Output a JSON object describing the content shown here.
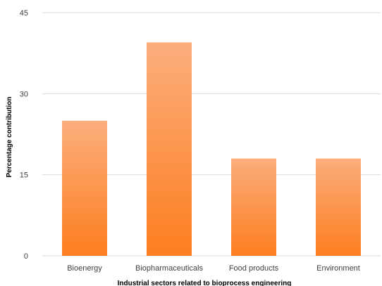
{
  "chart_data": {
    "type": "bar",
    "categories": [
      "Bioenergy",
      "Biopharmaceuticals",
      "Food products",
      "Environment"
    ],
    "values": [
      25,
      39.5,
      18,
      18
    ],
    "xlabel": "Industrial sectors related to bioprocess engineering",
    "ylabel": "Percentage contribution",
    "ylim": [
      0,
      45
    ],
    "yticks": [
      "0",
      "15",
      "30",
      "45"
    ],
    "grid": true,
    "legend": "none",
    "colors": {
      "bar_top": "#fbae7d",
      "bar_bottom": "#fd7e1f",
      "grid": "#d9d9d9",
      "text": "#404040",
      "axis_title": "#000000"
    }
  }
}
